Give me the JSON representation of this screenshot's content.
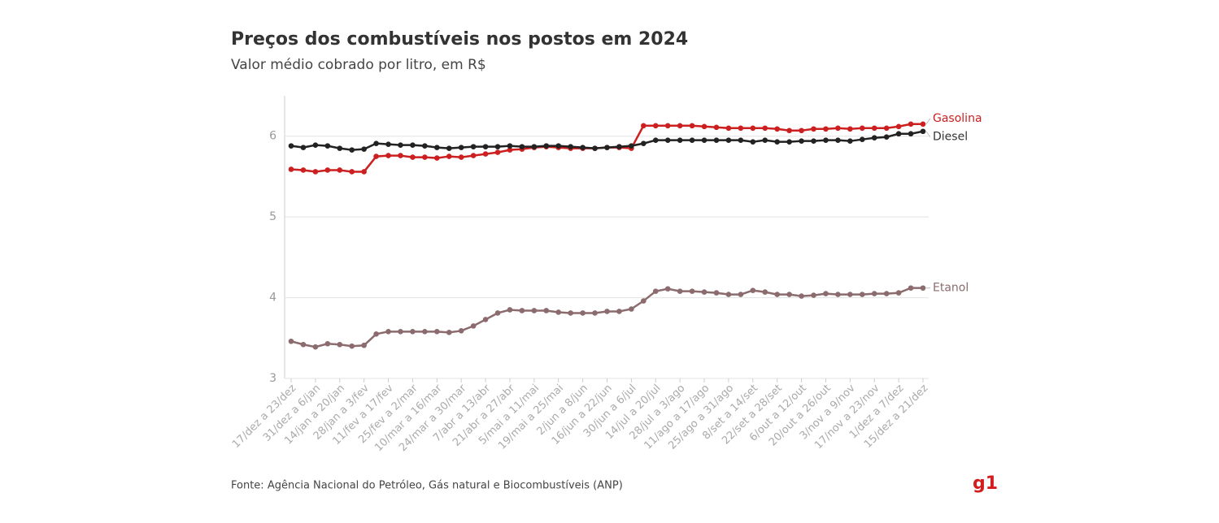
{
  "chart_data": {
    "type": "line",
    "title": "Preços dos combustíveis nos postos em 2024",
    "subtitle": "Valor médio cobrado por litro, em R$",
    "source": "Fonte: Agência Nacional do Petróleo, Gás natural e Biocombustíveis (ANP)",
    "logo": "g1",
    "categories": [
      "17/dez a 23/dez",
      null,
      "31/dez a 6/jan",
      null,
      "14/jan a 20/jan",
      null,
      "28/jan a 3/fev",
      null,
      "11/fev a 17/fev",
      null,
      "25/fev a 2/mar",
      null,
      "10/mar a 16/mar",
      null,
      "24/mar a 30/mar",
      null,
      "7/abr a 13/abr",
      null,
      "21/abr a 27/abr",
      null,
      "5/mai a 11/mai",
      null,
      "19/mai a 25/mai",
      null,
      "2/jun a 8/jun",
      null,
      "16/jun a 22/jun",
      null,
      "30/jun a 6/jul",
      null,
      "14/jul a 20/jul",
      null,
      "28/jul a 3/ago",
      null,
      "11/ago a 17/ago",
      null,
      "25/ago a 31/ago",
      null,
      "8/set a 14/set",
      null,
      "22/set a 28/set",
      null,
      "6/out a 12/out",
      null,
      "20/out a 26/out",
      null,
      "3/nov a 9/nov",
      null,
      "17/nov a 23/nov",
      null,
      "1/dez a 7/dez",
      null,
      "15/dez a 21/dez"
    ],
    "series": [
      {
        "name": "Gasolina",
        "color": "#cc1f1f",
        "values": [
          5.59,
          5.58,
          5.56,
          5.58,
          5.58,
          5.56,
          5.56,
          5.75,
          5.76,
          5.76,
          5.74,
          5.74,
          5.73,
          5.75,
          5.74,
          5.76,
          5.78,
          5.8,
          5.83,
          5.84,
          5.86,
          5.87,
          5.86,
          5.85,
          5.85,
          5.85,
          5.86,
          5.86,
          5.85,
          6.13,
          6.13,
          6.13,
          6.13,
          6.13,
          6.12,
          6.11,
          6.1,
          6.1,
          6.1,
          6.1,
          6.09,
          6.07,
          6.07,
          6.09,
          6.09,
          6.1,
          6.09,
          6.1,
          6.1,
          6.1,
          6.12,
          6.15,
          6.15
        ]
      },
      {
        "name": "Diesel",
        "color": "#222222",
        "values": [
          5.88,
          5.86,
          5.89,
          5.88,
          5.85,
          5.83,
          5.84,
          5.91,
          5.9,
          5.89,
          5.89,
          5.88,
          5.86,
          5.85,
          5.86,
          5.87,
          5.87,
          5.87,
          5.88,
          5.87,
          5.87,
          5.88,
          5.88,
          5.87,
          5.86,
          5.85,
          5.86,
          5.87,
          5.88,
          5.91,
          5.95,
          5.95,
          5.95,
          5.95,
          5.95,
          5.95,
          5.95,
          5.95,
          5.93,
          5.95,
          5.93,
          5.93,
          5.94,
          5.94,
          5.95,
          5.95,
          5.94,
          5.96,
          5.98,
          5.99,
          6.03,
          6.03,
          6.06
        ]
      },
      {
        "name": "Etanol",
        "color": "#8b6b6e",
        "values": [
          3.46,
          3.42,
          3.39,
          3.43,
          3.42,
          3.4,
          3.41,
          3.55,
          3.58,
          3.58,
          3.58,
          3.58,
          3.58,
          3.57,
          3.59,
          3.65,
          3.73,
          3.81,
          3.85,
          3.84,
          3.84,
          3.84,
          3.82,
          3.81,
          3.81,
          3.81,
          3.83,
          3.83,
          3.86,
          3.96,
          4.08,
          4.11,
          4.08,
          4.08,
          4.07,
          4.06,
          4.04,
          4.04,
          4.09,
          4.07,
          4.04,
          4.04,
          4.02,
          4.03,
          4.05,
          4.04,
          4.04,
          4.04,
          4.05,
          4.05,
          4.06,
          4.12,
          4.12
        ]
      }
    ],
    "ylim": [
      3,
      6.5
    ],
    "yticks": [
      3,
      4,
      5,
      6
    ],
    "grid": true
  }
}
